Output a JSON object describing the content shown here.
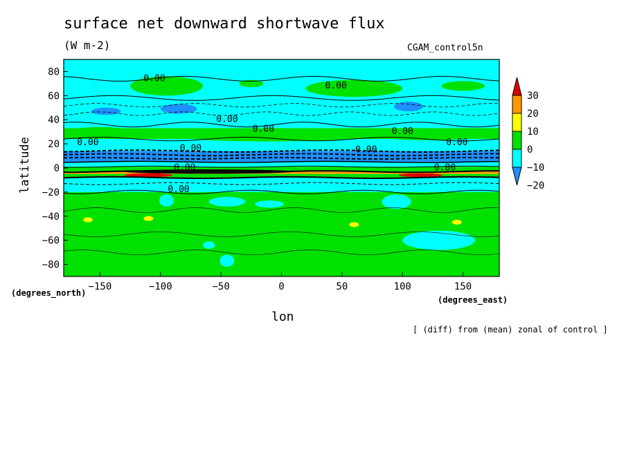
{
  "figure": {
    "title": "surface net downward shortwave flux",
    "units": "(W m-2)",
    "run_name": "CGAM_control5n",
    "note": "[ (diff) from (mean) zonal of control ]",
    "x_axis_name": "lon",
    "x_axis_units": "(degrees_east)",
    "y_axis_name": "latitude",
    "y_axis_units": "(degrees_north)"
  },
  "chart_data": {
    "type": "heatmap",
    "title": "surface net downward shortwave flux",
    "subtitle": "(W m-2)",
    "xlabel": "lon",
    "ylabel": "latitude",
    "xlim": [
      -180,
      180
    ],
    "ylim": [
      -90,
      90
    ],
    "x_ticks": [
      -150,
      -100,
      -50,
      0,
      50,
      100,
      150
    ],
    "y_ticks": [
      -80,
      -60,
      -40,
      -20,
      0,
      20,
      40,
      60,
      80
    ],
    "colorbar": {
      "levels": [
        -20,
        -10,
        0,
        10,
        20,
        30
      ],
      "colors": [
        "#1e90ff",
        "#00ffff",
        "#00e100",
        "#ffff00",
        "#ff9900",
        "#dd0000"
      ]
    },
    "contour_labels": [
      {
        "lon": -105,
        "lat": 72,
        "text": "0.00"
      },
      {
        "lon": 45,
        "lat": 66,
        "text": "0.00"
      },
      {
        "lon": -45,
        "lat": 38,
        "text": "0.00"
      },
      {
        "lon": -15,
        "lat": 30,
        "text": "0.00"
      },
      {
        "lon": 100,
        "lat": 28,
        "text": "0.00"
      },
      {
        "lon": -160,
        "lat": 19,
        "text": "0.00"
      },
      {
        "lon": 145,
        "lat": 19,
        "text": "0.00"
      },
      {
        "lon": -75,
        "lat": 14,
        "text": "0.00"
      },
      {
        "lon": 70,
        "lat": 13,
        "text": "0.00"
      },
      {
        "lon": -80,
        "lat": -2,
        "text": "0.00"
      },
      {
        "lon": 135,
        "lat": -2,
        "text": "0.00"
      },
      {
        "lon": -85,
        "lat": -20,
        "text": "0.00"
      }
    ]
  }
}
